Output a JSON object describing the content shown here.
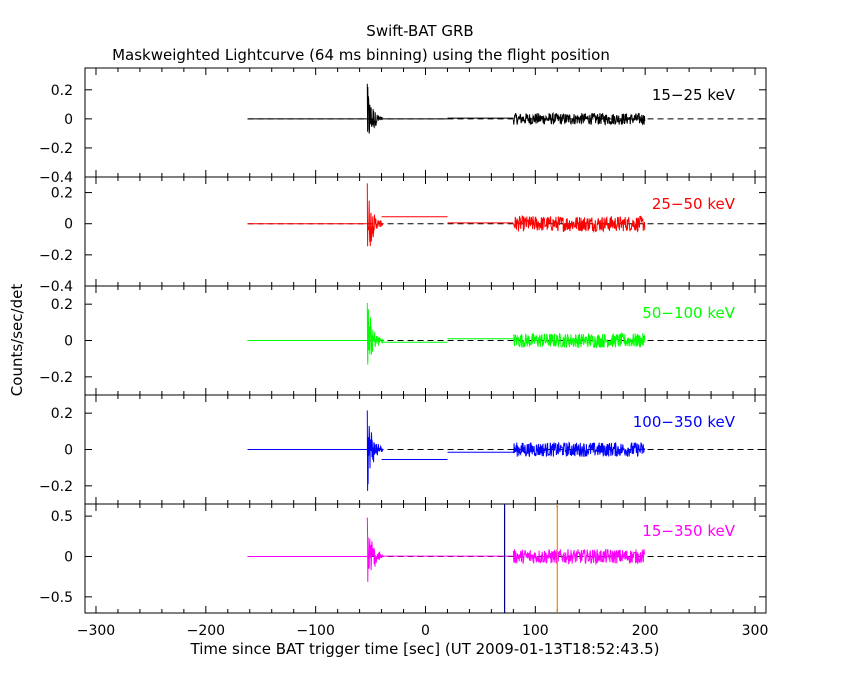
{
  "chart_data": {
    "type": "line",
    "title": "Swift-BAT GRB",
    "subtitle": "Maskweighted Lightcurve (64 ms binning) using the flight position",
    "xlabel": "Time since BAT trigger time [sec] (UT 2009-01-13T18:52:43.5)",
    "ylabel": "Counts/sec/det",
    "xlim": [
      -310,
      310
    ],
    "x_ticks": [
      -300,
      -200,
      -100,
      0,
      100,
      200,
      300
    ],
    "grid": false,
    "data_span": [
      -162,
      200
    ],
    "burst_time": -53,
    "step_segments": [
      [
        -162,
        -53
      ],
      [
        -40,
        20
      ],
      [
        20,
        80
      ]
    ],
    "noise_segment": [
      80,
      200
    ],
    "markers": [
      {
        "x": 72,
        "color": "#00008b",
        "panel": "15-350 keV"
      },
      {
        "x": 120,
        "color": "#ff7f00",
        "panel": "15-350 keV"
      }
    ],
    "panels": [
      {
        "name": "15-25 keV",
        "color": "#000000",
        "ylim": [
          -0.4,
          0.35
        ],
        "ticks": [
          -0.4,
          -0.2,
          0,
          0.2
        ],
        "tick_labels": [
          "−0.4",
          "−0.2",
          "0",
          "0.2"
        ],
        "levels": [
          0.0,
          0.0,
          0.005
        ],
        "burst_amp": 0.28,
        "noise_amp": 0.04
      },
      {
        "name": "25-50 keV",
        "color": "#ff0000",
        "ylim": [
          -0.4,
          0.3
        ],
        "ticks": [
          -0.4,
          -0.2,
          0,
          0.2
        ],
        "tick_labels": [
          "−0.4",
          "−0.2",
          "0",
          "0.2"
        ],
        "levels": [
          0.0,
          0.045,
          0.005
        ],
        "burst_amp": 0.27,
        "noise_amp": 0.05
      },
      {
        "name": "50-100 keV",
        "color": "#00ff00",
        "ylim": [
          -0.3,
          0.3
        ],
        "ticks": [
          -0.2,
          0,
          0.2
        ],
        "tick_labels": [
          "−0.2",
          "0",
          "0.2"
        ],
        "levels": [
          0.0,
          -0.01,
          0.01
        ],
        "burst_amp": 0.25,
        "noise_amp": 0.04
      },
      {
        "name": "100-350 keV",
        "color": "#0000ff",
        "ylim": [
          -0.3,
          0.3
        ],
        "ticks": [
          -0.2,
          0,
          0.2
        ],
        "tick_labels": [
          "−0.2",
          "0",
          "0.2"
        ],
        "levels": [
          0.0,
          -0.055,
          -0.015
        ],
        "burst_amp": 0.27,
        "noise_amp": 0.04
      },
      {
        "name": "15-350 keV",
        "color": "#ff00ff",
        "ylim": [
          -0.7,
          0.65
        ],
        "ticks": [
          -0.5,
          0,
          0.5
        ],
        "tick_labels": [
          "−0.5",
          "0",
          "0.5"
        ],
        "levels": [
          0.0,
          0.005,
          0.005
        ],
        "burst_amp": 0.6,
        "noise_amp": 0.09
      }
    ],
    "legend": [
      {
        "text": "15−25 keV",
        "color": "#000000"
      },
      {
        "text": "25−50 keV",
        "color": "#ff0000"
      },
      {
        "text": "50−100 keV",
        "color": "#00ff00"
      },
      {
        "text": "100−350 keV",
        "color": "#0000ff"
      },
      {
        "text": "15−350 keV",
        "color": "#ff00ff"
      }
    ],
    "x_tick_labels": [
      "−300",
      "−200",
      "−100",
      "0",
      "100",
      "200",
      "300"
    ]
  }
}
